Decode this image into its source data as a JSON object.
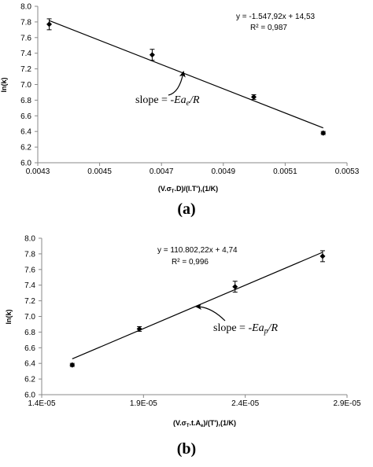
{
  "chart_data": [
    {
      "type": "scatter",
      "panel_label": "(a)",
      "x": [
        0.004337,
        0.00467,
        0.0049985,
        0.005223
      ],
      "y": [
        7.77,
        7.38,
        6.84,
        6.38
      ],
      "error": [
        0.07,
        0.07,
        0.03,
        0.02
      ],
      "trendline": {
        "slope": -1547.92,
        "intercept": 14.53
      },
      "equation": "y = -1.547,92x + 14,53",
      "r2": "R² = 0,987",
      "annotation": {
        "prefix": "slope = -",
        "italic": "Ea",
        "sub": "e",
        "suffix": "/R"
      },
      "xlim": [
        0.0043,
        0.0053
      ],
      "ylim": [
        6.0,
        8.0
      ],
      "xticks": [
        "0.0043",
        "0.0045",
        "0.0047",
        "0.0049",
        "0.0051",
        "0.0053"
      ],
      "yticks": [
        "6.0",
        "6.2",
        "6.4",
        "6.6",
        "6.8",
        "7.0",
        "7.2",
        "7.4",
        "7.6",
        "7.8",
        "8.0"
      ],
      "xlabel": {
        "parts": [
          "(V.σ",
          "T",
          ".D)/(I.T'),(1/K)"
        ]
      },
      "ylabel": "ln(k)"
    },
    {
      "type": "scatter",
      "panel_label": "(b)",
      "x": [
        1.55e-05,
        1.88e-05,
        2.35e-05,
        2.78e-05
      ],
      "y": [
        6.38,
        6.84,
        7.38,
        7.77
      ],
      "error": [
        0.02,
        0.03,
        0.07,
        0.07
      ],
      "trendline": {
        "slope": 110802.22,
        "intercept": 4.74
      },
      "equation": "y = 110.802,22x + 4,74",
      "r2": "R² = 0,996",
      "annotation": {
        "prefix": "slope = -",
        "italic": "Ea",
        "sub": "p",
        "suffix": "/R"
      },
      "xlim": [
        1.4e-05,
        2.9e-05
      ],
      "ylim": [
        6.0,
        8.0
      ],
      "xticks": [
        "1.4E-05",
        "1.9E-05",
        "2.4E-05",
        "2.9E-05"
      ],
      "yticks": [
        "6.0",
        "6.2",
        "6.4",
        "6.6",
        "6.8",
        "7.0",
        "7.2",
        "7.4",
        "7.6",
        "7.8",
        "8.0"
      ],
      "xlabel": {
        "parts": [
          "(V.σ",
          "T",
          ".t.A",
          "e",
          ")/(T'),(1/K)"
        ]
      },
      "ylabel": "ln(k)"
    }
  ]
}
